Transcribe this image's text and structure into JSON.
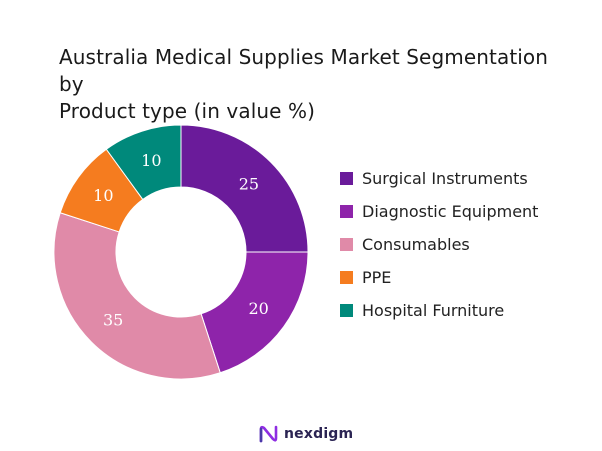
{
  "chart_data": {
    "type": "pie",
    "title_line1": "Australia Medical Supplies Market Segmentation by",
    "title_line2": "Product type (in value %)",
    "categories": [
      "Surgical Instruments",
      "Diagnostic Equipment",
      "Consumables",
      "PPE",
      "Hospital Furniture"
    ],
    "values": [
      25,
      20,
      35,
      10,
      10
    ],
    "colors": [
      "#6a1b9a",
      "#8e24aa",
      "#e08aa8",
      "#f57c1f",
      "#00897b"
    ],
    "donut": true,
    "legend_position": "right"
  },
  "brand": {
    "name": "nexdigm",
    "logo_icon": "nexdigm-logo-icon"
  }
}
